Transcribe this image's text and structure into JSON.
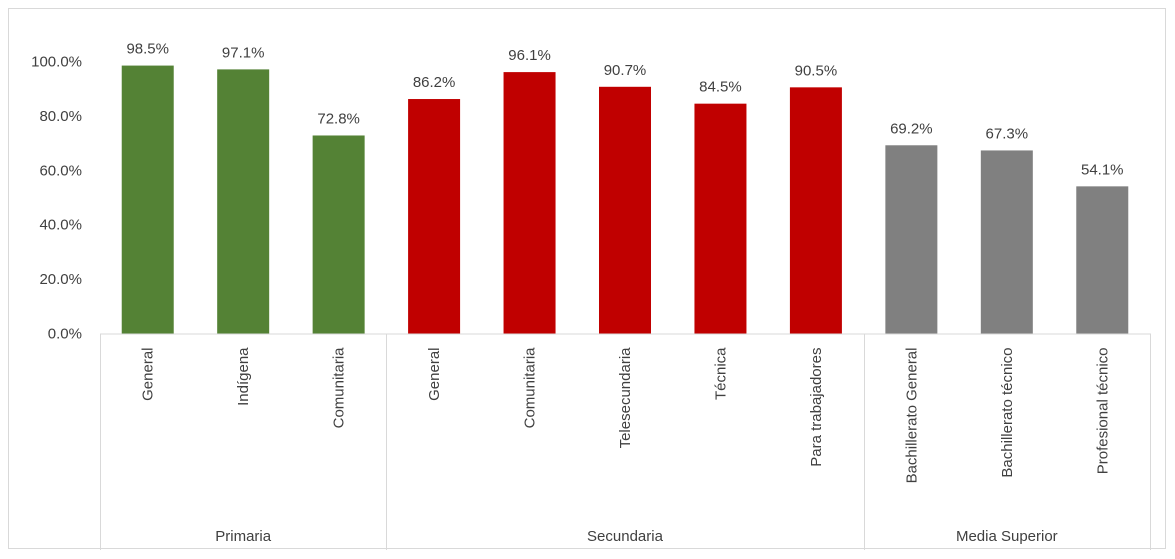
{
  "chart_data": {
    "type": "bar",
    "title": "",
    "xlabel": "",
    "ylabel": "",
    "ylim": [
      0,
      100
    ],
    "y_ticks": [
      "0.0%",
      "20.0%",
      "40.0%",
      "60.0%",
      "80.0%",
      "100.0%"
    ],
    "y_tick_values": [
      0,
      20,
      40,
      60,
      80,
      100
    ],
    "grid": false,
    "legend": "none",
    "groups": [
      {
        "name": "Primaria",
        "color": "#548235",
        "categories": [
          "General",
          "Indígena",
          "Comunitaria"
        ],
        "values": [
          98.5,
          97.1,
          72.8
        ],
        "labels": [
          "98.5%",
          "97.1%",
          "72.8%"
        ]
      },
      {
        "name": "Secundaria",
        "color": "#c00000",
        "categories": [
          "General",
          "Comunitaria",
          "Telesecundaria",
          "Técnica",
          "Para trabajadores"
        ],
        "values": [
          86.2,
          96.1,
          90.7,
          84.5,
          90.5
        ],
        "labels": [
          "86.2%",
          "96.1%",
          "90.7%",
          "84.5%",
          "90.5%"
        ]
      },
      {
        "name": "Media Superior",
        "color": "#808080",
        "categories": [
          "Bachillerato General",
          "Bachillerato técnico",
          "Profesional técnico"
        ],
        "values": [
          69.2,
          67.3,
          54.1
        ],
        "labels": [
          "69.2%",
          "67.3%",
          "54.1%"
        ]
      }
    ]
  }
}
